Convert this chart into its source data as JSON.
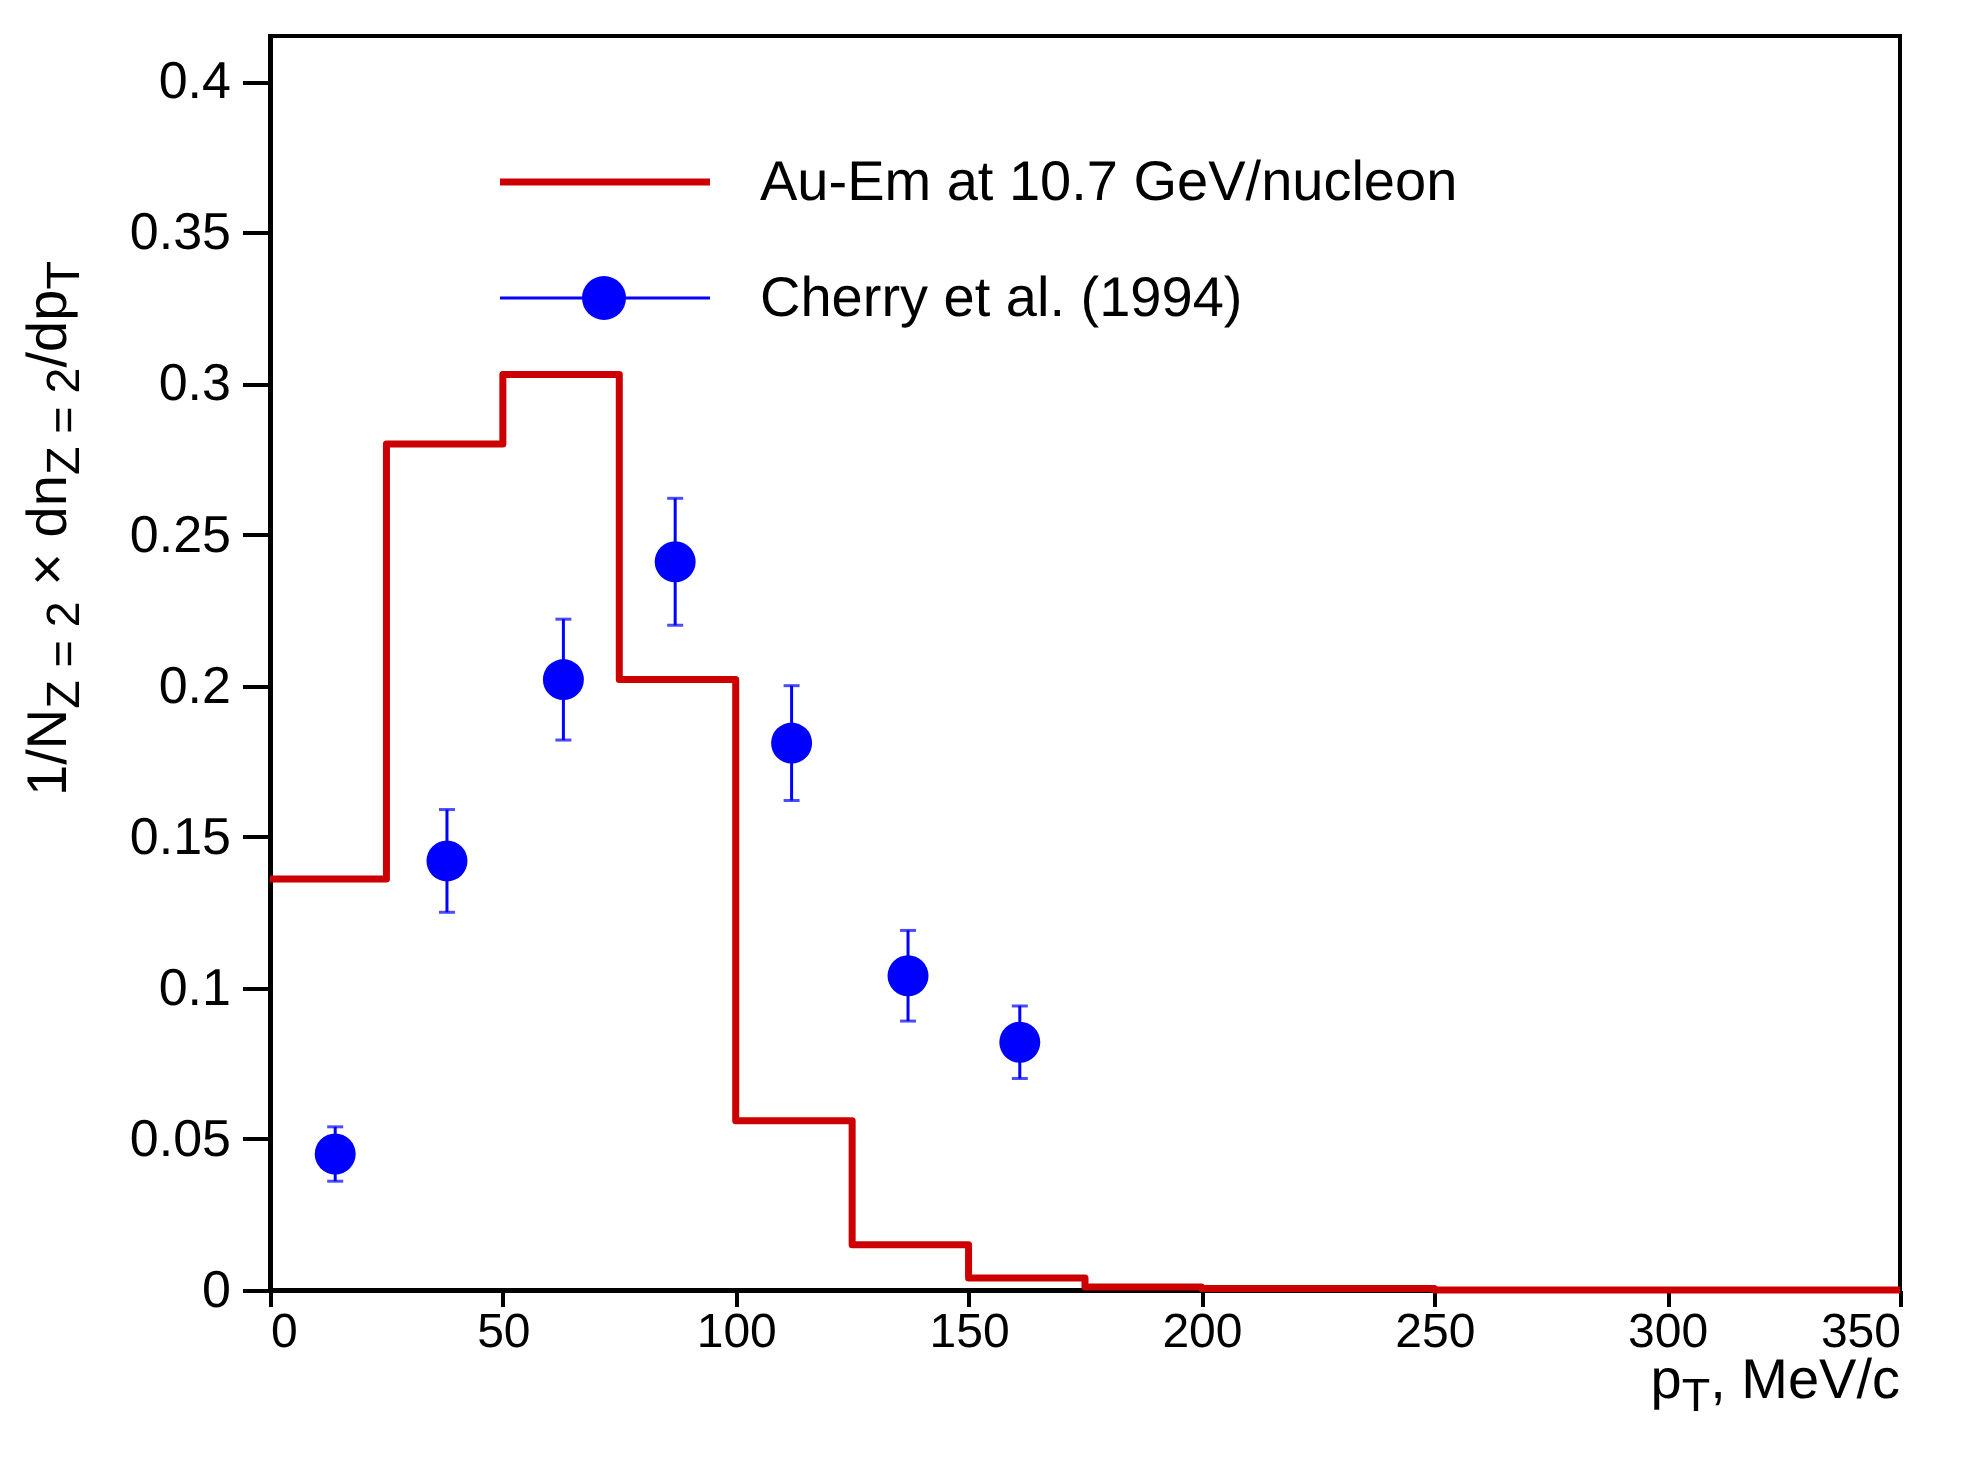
{
  "chart_data": {
    "type": "histogram",
    "xlabel": "p$_{T}$, MeV/c",
    "ylabel": "1/N$_{Z = 2}$ × dn$_{Z = 2}$/dp$_{T}$",
    "xlim": [
      0,
      350
    ],
    "xticks": [
      0,
      50,
      100,
      150,
      200,
      250,
      300,
      350
    ],
    "ylim": [
      0,
      0.415
    ],
    "yticks": [
      0,
      0.05,
      0.1,
      0.15,
      0.2,
      0.25,
      0.3,
      0.35,
      0.4
    ],
    "grid": false,
    "legend": "top",
    "series": [
      {
        "name": "Au-Em at 10.7 GeV/nucleon",
        "color": "#cc0000",
        "line_style": "solid",
        "bins": [
          0,
          25,
          50,
          75,
          100,
          125,
          150,
          175,
          200,
          225,
          250,
          275,
          300,
          325,
          350
        ],
        "values": [
          0.136,
          0.28,
          0.303,
          0.202,
          0.056,
          0.015,
          0.004,
          0.001,
          0.0005,
          0.0005,
          0,
          0,
          0,
          0
        ]
      },
      {
        "name": "Cherry et al. (1994)",
        "type": "scatter",
        "color": "#0000ff",
        "marker": "circle",
        "x": [
          14,
          38,
          63,
          87,
          112,
          137,
          161
        ],
        "values": [
          0.045,
          0.142,
          0.202,
          0.241,
          0.181,
          0.104,
          0.082
        ],
        "errors": [
          0.009,
          0.017,
          0.02,
          0.021,
          0.019,
          0.015,
          0.012
        ]
      }
    ]
  }
}
